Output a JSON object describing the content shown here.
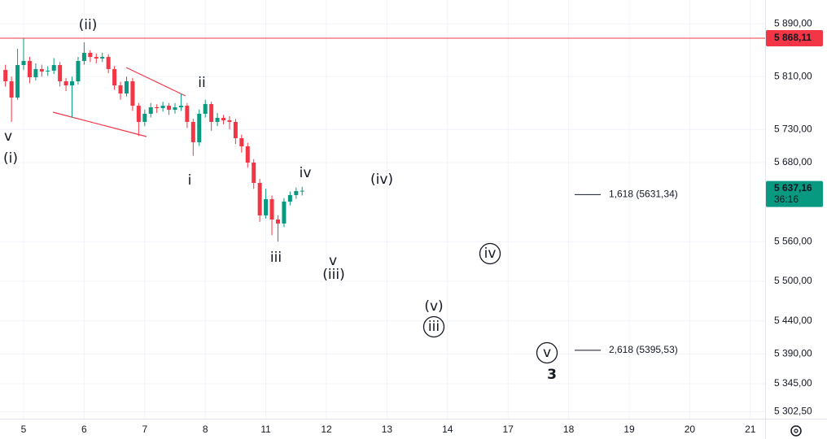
{
  "chart_data": {
    "type": "candlestick",
    "categories": [
      "5",
      "6",
      "7",
      "8",
      "11",
      "12",
      "13",
      "14",
      "17",
      "18",
      "19",
      "20",
      "21"
    ],
    "ylim": [
      5292,
      5926
    ],
    "yticks": [
      {
        "value": 5890,
        "label": "5 890,00"
      },
      {
        "value": 5810,
        "label": "5 810,00"
      },
      {
        "value": 5730,
        "label": "5 730,00"
      },
      {
        "value": 5680,
        "label": "5 680,00"
      },
      {
        "value": 5560,
        "label": "5 560,00"
      },
      {
        "value": 5500,
        "label": "5 500,00"
      },
      {
        "value": 5440,
        "label": "5 440,00"
      },
      {
        "value": 5390,
        "label": "5 390,00"
      },
      {
        "value": 5345,
        "label": "5 345,00"
      },
      {
        "value": 5302.5,
        "label": "5 302,50"
      }
    ],
    "grid": true,
    "up_color": "#089981",
    "down_color": "#f23645",
    "candles": [
      [
        5820,
        5828,
        5795,
        5802.9
      ],
      [
        5802.9,
        5810,
        5741.5,
        5778.3
      ],
      [
        5778.3,
        5852,
        5775,
        5827.5
      ],
      [
        5827.5,
        5868.1,
        5820,
        5833.7
      ],
      [
        5833.7,
        5840,
        5800,
        5809.1
      ],
      [
        5809.1,
        5830,
        5804,
        5821.4
      ],
      [
        5821.4,
        5828,
        5810,
        5817.7
      ],
      [
        5817.7,
        5826,
        5811,
        5819
      ],
      [
        5819,
        5838,
        5814,
        5827.5
      ],
      [
        5827.5,
        5832,
        5795,
        5802.9
      ],
      [
        5802.9,
        5808,
        5788,
        5796.7
      ],
      [
        5796.7,
        5810,
        5748,
        5802.9
      ],
      [
        5802.9,
        5840,
        5798,
        5833.7
      ],
      [
        5833.7,
        5862,
        5828,
        5846
      ],
      [
        5846,
        5850,
        5832,
        5839.8
      ],
      [
        5839.8,
        5845,
        5830,
        5837.4
      ],
      [
        5837.4,
        5846,
        5832,
        5839.8
      ],
      [
        5839.8,
        5844,
        5815,
        5821.4
      ],
      [
        5821.4,
        5826,
        5790,
        5796.7
      ],
      [
        5796.7,
        5802,
        5775,
        5784.4
      ],
      [
        5784.4,
        5810,
        5780,
        5802.9
      ],
      [
        5802.9,
        5808,
        5758,
        5765.9
      ],
      [
        5765.9,
        5770,
        5720,
        5741.4
      ],
      [
        5741.4,
        5760,
        5735,
        5753.7
      ],
      [
        5753.7,
        5770,
        5748,
        5763.5
      ],
      [
        5763.5,
        5768,
        5755,
        5762.3
      ],
      [
        5762.3,
        5772,
        5757,
        5765.9
      ],
      [
        5765.9,
        5770,
        5752,
        5759.8
      ],
      [
        5759.8,
        5770,
        5754,
        5763.5
      ],
      [
        5763.5,
        5784,
        5758,
        5765.9
      ],
      [
        5765.9,
        5770,
        5732,
        5741.4
      ],
      [
        5741.4,
        5746,
        5690,
        5710.6
      ],
      [
        5710.6,
        5760,
        5705,
        5753.7
      ],
      [
        5753.7,
        5775,
        5748,
        5768.4
      ],
      [
        5768.4,
        5772,
        5728,
        5741.4
      ],
      [
        5741.4,
        5755,
        5735,
        5747.5
      ],
      [
        5747.5,
        5752,
        5738,
        5743.8
      ],
      [
        5743.8,
        5750,
        5730,
        5741.4
      ],
      [
        5741.4,
        5746,
        5708,
        5716.7
      ],
      [
        5716.7,
        5722,
        5695,
        5704.4
      ],
      [
        5704.4,
        5710,
        5672,
        5679.8
      ],
      [
        5679.8,
        5685,
        5640,
        5649
      ],
      [
        5649,
        5655,
        5590,
        5599.8
      ],
      [
        5599.8,
        5640,
        5595,
        5624.4
      ],
      [
        5624.4,
        5630,
        5570,
        5593.6
      ],
      [
        5593.6,
        5600,
        5560,
        5587.5
      ],
      [
        5587.5,
        5626,
        5582,
        5620.7
      ],
      [
        5620.7,
        5636,
        5615,
        5630.6
      ],
      [
        5630.6,
        5642,
        5625,
        5636.7
      ],
      [
        5636.7,
        5643,
        5630,
        5637.16
      ]
    ],
    "price_line": {
      "value": 5868.11,
      "label": "5 868,11",
      "color": "#f23645"
    },
    "last_price": {
      "value": 5637.16,
      "label": "5 637,16",
      "countdown": "36:16"
    },
    "fib_levels": [
      {
        "value": 5631.34,
        "label": "1,618 (5631,34)"
      },
      {
        "value": 5395.53,
        "label": "2,618 (5395,53)"
      }
    ],
    "wave_labels": [
      {
        "text": "v"
      },
      {
        "text": "(i)"
      },
      {
        "text": "(ii)"
      },
      {
        "text": "ii"
      },
      {
        "text": "i"
      },
      {
        "text": "iii"
      },
      {
        "text": "iv"
      },
      {
        "text": "v"
      },
      {
        "text": "(iii)"
      },
      {
        "text": "(iv)"
      },
      {
        "text": "(v)"
      },
      {
        "text": "iii",
        "circled": true
      },
      {
        "text": "iv",
        "circled": true
      },
      {
        "text": "v",
        "circled": true
      },
      {
        "text": "3",
        "bold": true
      }
    ]
  }
}
